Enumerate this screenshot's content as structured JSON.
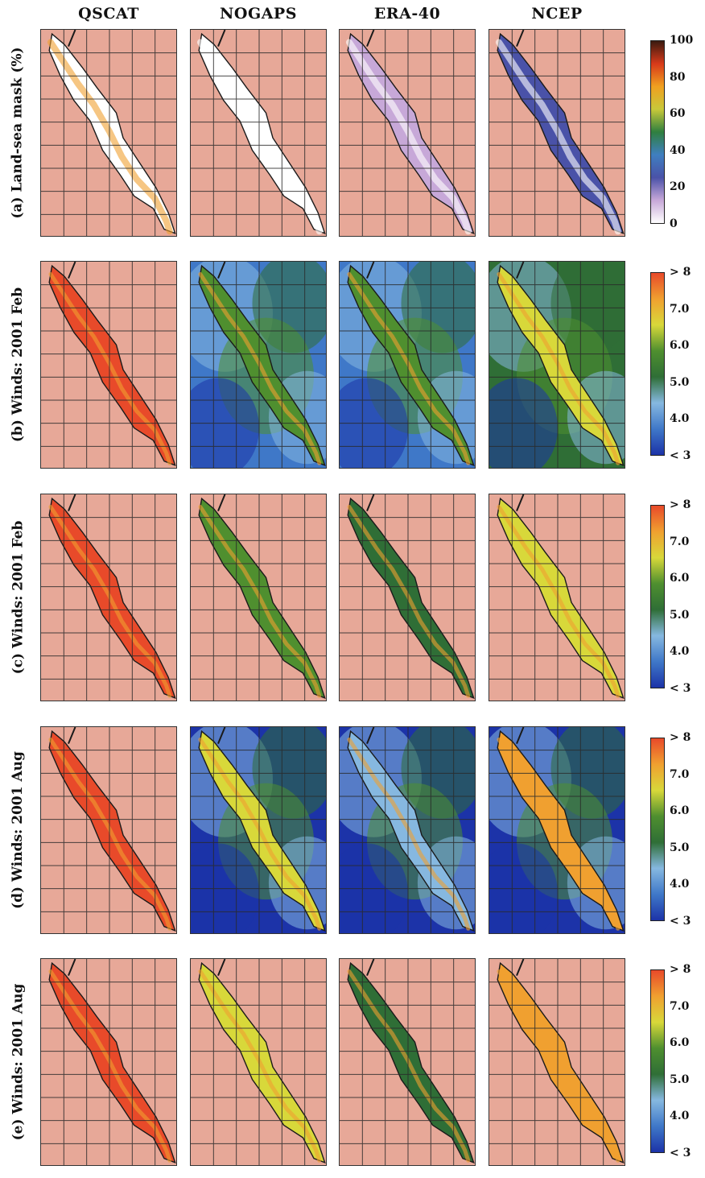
{
  "columns": [
    {
      "label": "QSCAT"
    },
    {
      "label": "NOGAPS"
    },
    {
      "label": "ERA-40"
    },
    {
      "label": "NCEP"
    }
  ],
  "rows": [
    {
      "label": "(a) Land-sea mask (%)",
      "colorbar": [
        "100",
        "80",
        "60",
        "40",
        "20",
        "0"
      ]
    },
    {
      "label": "(b) Winds: 2001 Feb",
      "colorbar": [
        "> 8",
        "7.0",
        "6.0",
        "5.0",
        "4.0",
        "< 3"
      ]
    },
    {
      "label": "(c) Winds: 2001 Feb",
      "colorbar": [
        "> 8",
        "7.0",
        "6.0",
        "5.0",
        "4.0",
        "< 3"
      ]
    },
    {
      "label": "(d) Winds: 2001 Aug",
      "colorbar": [
        "> 8",
        "7.0",
        "6.0",
        "5.0",
        "4.0",
        "< 3"
      ]
    },
    {
      "label": "(e) Winds: 2001 Aug",
      "colorbar": [
        "> 8",
        "7.0",
        "6.0",
        "5.0",
        "4.0",
        "< 3"
      ]
    }
  ],
  "colors": {
    "land": "#e7a898",
    "grid": "#2a2a2a",
    "coast": "#1a1a1a",
    "mask_scale": [
      "#ffffff",
      "#c7a8d8",
      "#4a52a8",
      "#3f7fc0",
      "#2f7f3f",
      "#c8c83a",
      "#f0a020",
      "#d83a1a",
      "#3a1a10"
    ],
    "wind_scale": [
      "#1c33a8",
      "#3f78c8",
      "#86b8e0",
      "#2f6e36",
      "#4f8f2f",
      "#d8d83a",
      "#f0a030",
      "#e84a2a"
    ]
  }
}
